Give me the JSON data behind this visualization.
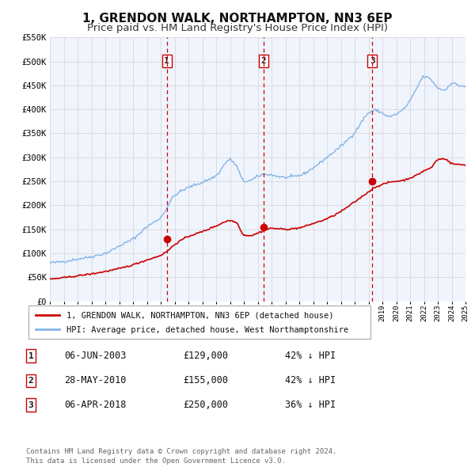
{
  "title": "1, GRENDON WALK, NORTHAMPTON, NN3 6EP",
  "subtitle": "Price paid vs. HM Land Registry's House Price Index (HPI)",
  "title_fontsize": 11,
  "subtitle_fontsize": 9.5,
  "background_color": "#ffffff",
  "plot_bg_color": "#f0f4fc",
  "grid_color": "#d8d8d8",
  "ylim": [
    0,
    550000
  ],
  "yticks": [
    0,
    50000,
    100000,
    150000,
    200000,
    250000,
    300000,
    350000,
    400000,
    450000,
    500000,
    550000
  ],
  "ytick_labels": [
    "£0",
    "£50K",
    "£100K",
    "£150K",
    "£200K",
    "£250K",
    "£300K",
    "£350K",
    "£400K",
    "£450K",
    "£500K",
    "£550K"
  ],
  "hpi_color": "#82b4e8",
  "price_color": "#cc0000",
  "marker_color": "#cc0000",
  "vline_color": "#cc0000",
  "sale_dates": [
    2003.44,
    2010.41,
    2018.27
  ],
  "sale_prices": [
    129000,
    155000,
    250000
  ],
  "sale_labels": [
    "1",
    "2",
    "3"
  ],
  "legend_property": "1, GRENDON WALK, NORTHAMPTON, NN3 6EP (detached house)",
  "legend_hpi": "HPI: Average price, detached house, West Northamptonshire",
  "table_rows": [
    [
      "1",
      "06-JUN-2003",
      "£129,000",
      "42% ↓ HPI"
    ],
    [
      "2",
      "28-MAY-2010",
      "£155,000",
      "42% ↓ HPI"
    ],
    [
      "3",
      "06-APR-2018",
      "£250,000",
      "36% ↓ HPI"
    ]
  ],
  "footer": "Contains HM Land Registry data © Crown copyright and database right 2024.\nThis data is licensed under the Open Government Licence v3.0.",
  "xmin": 1995,
  "xmax": 2025,
  "hpi_keypoints": [
    [
      1995,
      80000
    ],
    [
      1996,
      83000
    ],
    [
      1997,
      88000
    ],
    [
      1998,
      93000
    ],
    [
      1999,
      100000
    ],
    [
      2000,
      115000
    ],
    [
      2001,
      130000
    ],
    [
      2002,
      155000
    ],
    [
      2003,
      175000
    ],
    [
      2004,
      220000
    ],
    [
      2005,
      237000
    ],
    [
      2006,
      248000
    ],
    [
      2007,
      262000
    ],
    [
      2008,
      295000
    ],
    [
      2008.5,
      280000
    ],
    [
      2009,
      250000
    ],
    [
      2009.5,
      252000
    ],
    [
      2010,
      260000
    ],
    [
      2010.5,
      265000
    ],
    [
      2011,
      263000
    ],
    [
      2012,
      258000
    ],
    [
      2013,
      262000
    ],
    [
      2014,
      278000
    ],
    [
      2015,
      300000
    ],
    [
      2016,
      323000
    ],
    [
      2017,
      352000
    ],
    [
      2018,
      392000
    ],
    [
      2018.5,
      398000
    ],
    [
      2019,
      392000
    ],
    [
      2019.5,
      385000
    ],
    [
      2020,
      390000
    ],
    [
      2020.5,
      400000
    ],
    [
      2021,
      418000
    ],
    [
      2021.5,
      445000
    ],
    [
      2022,
      468000
    ],
    [
      2022.5,
      462000
    ],
    [
      2023,
      445000
    ],
    [
      2023.5,
      440000
    ],
    [
      2024,
      455000
    ],
    [
      2024.5,
      450000
    ],
    [
      2025,
      448000
    ]
  ],
  "price_keypoints": [
    [
      1995,
      46000
    ],
    [
      1996,
      49000
    ],
    [
      1997,
      53000
    ],
    [
      1998,
      57000
    ],
    [
      1999,
      62000
    ],
    [
      2000,
      68000
    ],
    [
      2001,
      76000
    ],
    [
      2002,
      86000
    ],
    [
      2003,
      96000
    ],
    [
      2003.5,
      105000
    ],
    [
      2004,
      118000
    ],
    [
      2005,
      135000
    ],
    [
      2006,
      145000
    ],
    [
      2007,
      157000
    ],
    [
      2008,
      168000
    ],
    [
      2008.5,
      163000
    ],
    [
      2009,
      138000
    ],
    [
      2009.5,
      137000
    ],
    [
      2010,
      142000
    ],
    [
      2010.5,
      148000
    ],
    [
      2011,
      152000
    ],
    [
      2012,
      150000
    ],
    [
      2013,
      153000
    ],
    [
      2014,
      162000
    ],
    [
      2015,
      172000
    ],
    [
      2016,
      187000
    ],
    [
      2017,
      207000
    ],
    [
      2018,
      228000
    ],
    [
      2018.5,
      238000
    ],
    [
      2019,
      243000
    ],
    [
      2019.5,
      248000
    ],
    [
      2020,
      250000
    ],
    [
      2020.5,
      252000
    ],
    [
      2021,
      257000
    ],
    [
      2021.5,
      263000
    ],
    [
      2022,
      272000
    ],
    [
      2022.5,
      278000
    ],
    [
      2023,
      295000
    ],
    [
      2023.5,
      297000
    ],
    [
      2024,
      287000
    ],
    [
      2024.5,
      285000
    ],
    [
      2025,
      284000
    ]
  ]
}
